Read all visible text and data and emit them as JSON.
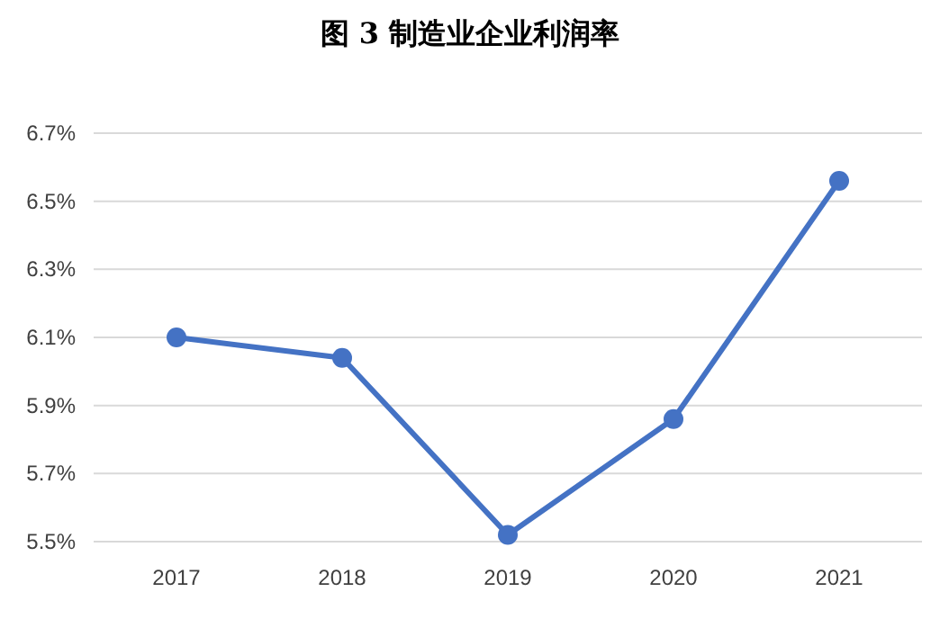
{
  "chart_data": {
    "type": "line",
    "title": "图 3  制造业企业利润率",
    "categories": [
      "2017",
      "2018",
      "2019",
      "2020",
      "2021"
    ],
    "series": [
      {
        "color": "#4472c4",
        "values": [
          6.1,
          6.04,
          5.52,
          5.86,
          6.56
        ]
      }
    ],
    "ylim": [
      5.5,
      6.7
    ],
    "yticks": [
      {
        "value": 5.5,
        "label": "5.5%"
      },
      {
        "value": 5.7,
        "label": "5.7%"
      },
      {
        "value": 5.9,
        "label": "5.9%"
      },
      {
        "value": 6.1,
        "label": "6.1%"
      },
      {
        "value": 6.3,
        "label": "6.3%"
      },
      {
        "value": 6.5,
        "label": "6.5%"
      },
      {
        "value": 6.7,
        "label": "6.7%"
      }
    ],
    "grid": "y",
    "marker": "circle",
    "line_style": "solid"
  }
}
